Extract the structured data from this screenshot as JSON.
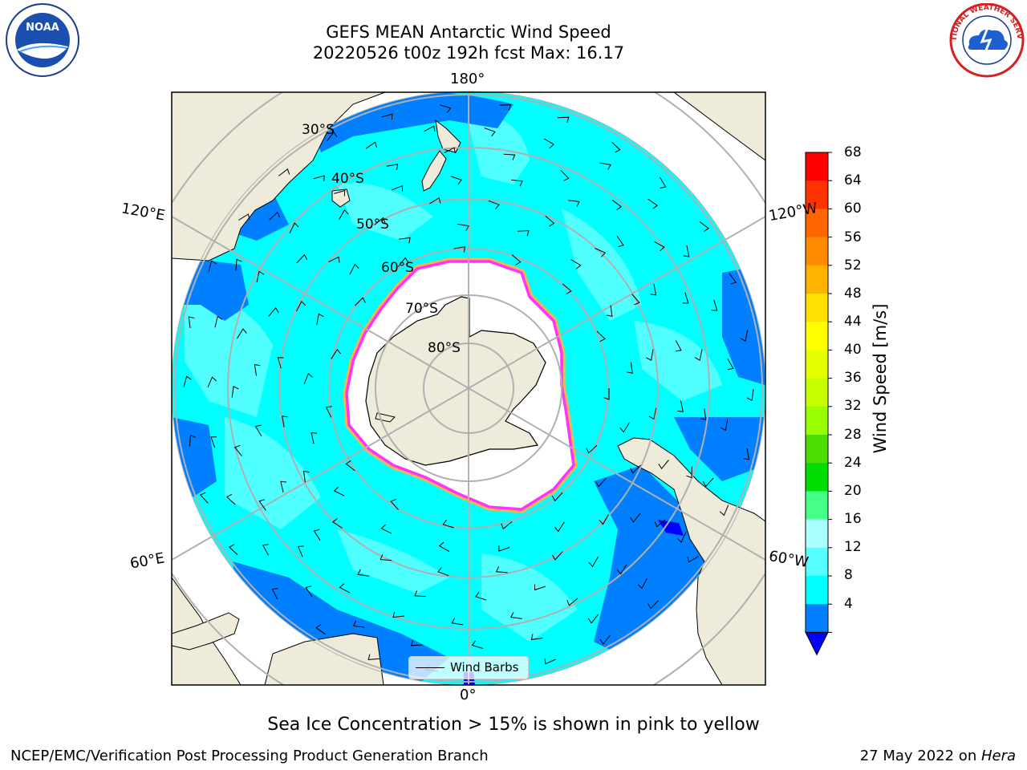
{
  "title_line1": "GEFS MEAN Antarctic Wind Speed",
  "title_line2": "20220526 t00z 192h fcst   Max: 16.17",
  "longitude_labels": {
    "top": "180°",
    "bottom": "0°",
    "upper_left": "120°E",
    "upper_right": "120°W",
    "lower_left": "60°E",
    "lower_right": "60°W"
  },
  "latitude_labels": [
    "30°S",
    "40°S",
    "50°S",
    "60°S",
    "70°S",
    "80°S"
  ],
  "colorbar": {
    "label": "Wind Speed [m/s]",
    "ticks": [
      "68",
      "64",
      "60",
      "56",
      "52",
      "48",
      "44",
      "40",
      "36",
      "32",
      "28",
      "24",
      "20",
      "16",
      "12",
      "8",
      "4"
    ],
    "colors": [
      "#ff0000",
      "#ff3300",
      "#ff6600",
      "#ff8c00",
      "#ffb300",
      "#ffe000",
      "#ffff00",
      "#e6ff00",
      "#c8ff00",
      "#99ff00",
      "#4ddd00",
      "#00dd00",
      "#44ff88",
      "#aaffff",
      "#55ffff",
      "#00ffff",
      "#007fff"
    ],
    "extend_color": "#0000ff"
  },
  "legend": {
    "label": "Wind Barbs"
  },
  "map_colors": {
    "land": "#efebda",
    "ice": "#ffffff",
    "ice_edge": "#ff33ff",
    "ice_fringe": "#ffb347",
    "ocean_base": "#00ffff",
    "ocean_light": "#55ffff",
    "ocean_blue": "#007fff",
    "ocean_deep": "#0000ff",
    "grid": "#b0b0b0"
  },
  "caption": "Sea Ice Concentration > 15% is shown in pink to yellow",
  "footer_left": "NCEP/EMC/Verification Post Processing Product Generation Branch",
  "footer_date": "27 May 2022 on ",
  "footer_machine": "Hera",
  "logos": {
    "left": "NOAA",
    "right": "NATIONAL WEATHER SERVICE"
  }
}
